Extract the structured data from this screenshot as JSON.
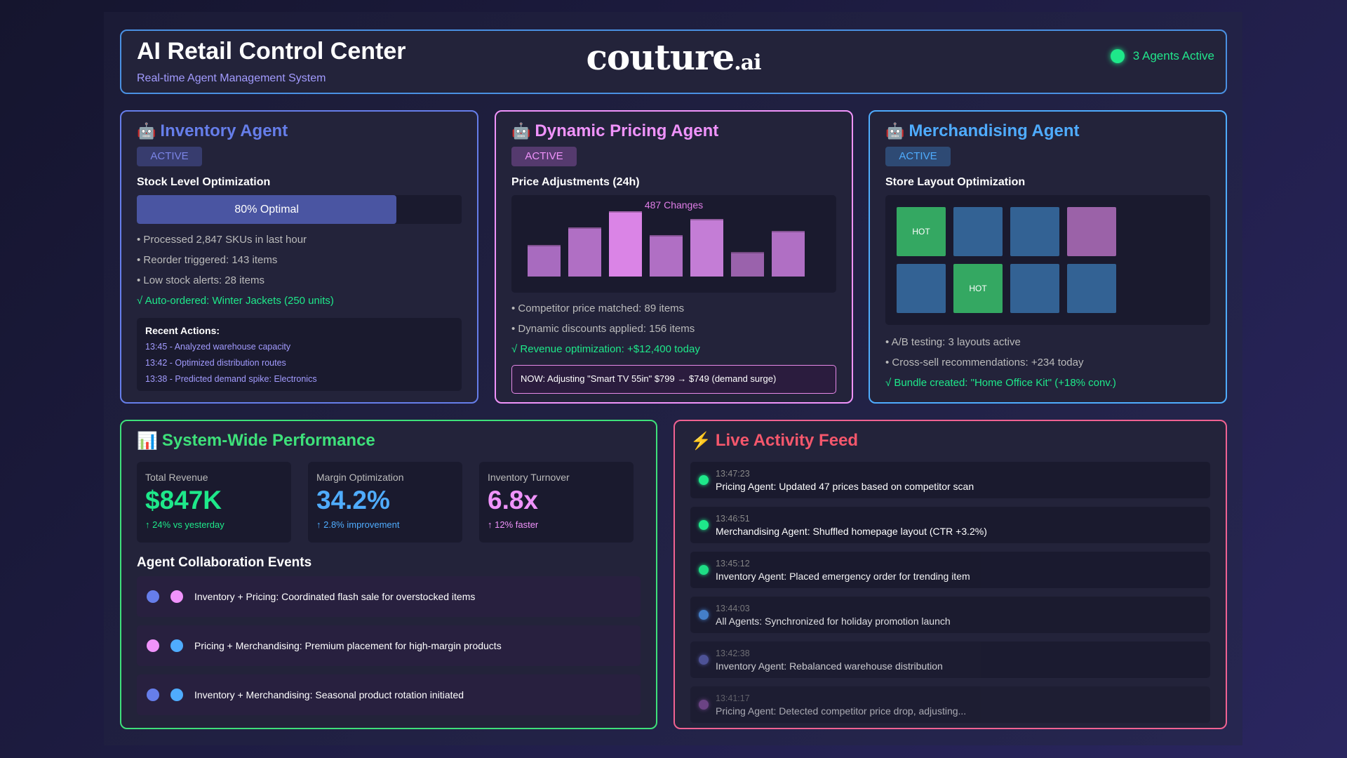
{
  "header": {
    "title": "AI Retail Control Center",
    "subtitle": "Real-time Agent Management System",
    "logo": "couture",
    "logo_suffix": ".ai",
    "status": "3 Agents Active"
  },
  "colors": {
    "inventory": "#667eea",
    "pricing": "#f093fb",
    "merch": "#4facfe",
    "success": "#1ee88a",
    "feed": "#f5576c",
    "perf": "#3ee07a"
  },
  "inventory": {
    "icon": "robot-icon",
    "title": "Inventory Agent",
    "badge": "ACTIVE",
    "section": "Stock Level Optimization",
    "progress": 80,
    "progress_label": "80% Optimal",
    "bullets": [
      "• Processed 2,847 SKUs in last hour",
      "• Reorder triggered: 143 items",
      "• Low stock alerts: 28 items"
    ],
    "success": "√ Auto-ordered: Winter Jackets (250 units)",
    "recent_title": "Recent Actions:",
    "recent": [
      "13:45 - Analyzed warehouse capacity",
      "13:42 - Optimized distribution routes",
      "13:38 - Predicted demand spike: Electronics"
    ]
  },
  "pricing": {
    "icon": "robot-icon",
    "title": "Dynamic Pricing Agent",
    "badge": "ACTIVE",
    "section": "Price Adjustments (24h)",
    "chart_label": "487 Changes",
    "bars": [
      37,
      57,
      76,
      48,
      67,
      29,
      53
    ],
    "bar_colors": [
      "#a86bbf",
      "#b06fc4",
      "#da84e6",
      "#b06fc4",
      "#c47dd6",
      "#9a62ac",
      "#b06fc4"
    ],
    "bullets": [
      "• Competitor price matched: 89 items",
      "• Dynamic discounts applied: 156 items"
    ],
    "success": "√ Revenue optimization: +$12,400 today",
    "now": "NOW: Adjusting \"Smart TV 55in\" $799 → $749 (demand surge)"
  },
  "merch": {
    "icon": "robot-icon",
    "title": "Merchandising Agent",
    "badge": "ACTIVE",
    "section": "Store Layout Optimization",
    "tiles": [
      {
        "label": "HOT",
        "color": "#34a862"
      },
      {
        "label": "",
        "color": "#336294"
      },
      {
        "label": "",
        "color": "#336294"
      },
      {
        "label": "",
        "color": "#9b62a8"
      },
      {
        "label": "",
        "color": "#336294"
      },
      {
        "label": "HOT",
        "color": "#34a862"
      },
      {
        "label": "",
        "color": "#336294"
      },
      {
        "label": "",
        "color": "#336294"
      }
    ],
    "bullets": [
      "• A/B testing: 3 layouts active",
      "• Cross-sell recommendations: +234 today"
    ],
    "success": "√ Bundle created: \"Home Office Kit\" (+18% conv.)"
  },
  "performance": {
    "icon": "bar-chart-icon",
    "title": "System-Wide Performance",
    "metrics": [
      {
        "label": "Total Revenue",
        "value": "$847K",
        "sub": "↑ 24% vs yesterday",
        "color": "#1ee88a"
      },
      {
        "label": "Margin Optimization",
        "value": "34.2%",
        "sub": "↑ 2.8% improvement",
        "color": "#4facfe"
      },
      {
        "label": "Inventory Turnover",
        "value": "6.8x",
        "sub": "↑ 12% faster",
        "color": "#f093fb"
      }
    ],
    "collab_title": "Agent Collaboration Events",
    "collab": [
      {
        "text": "Inventory + Pricing: Coordinated flash sale for overstocked items",
        "dots": [
          "#667eea",
          "#f093fb"
        ]
      },
      {
        "text": "Pricing + Merchandising: Premium placement for high-margin products",
        "dots": [
          "#f093fb",
          "#4facfe"
        ]
      },
      {
        "text": "Inventory + Merchandising: Seasonal product rotation initiated",
        "dots": [
          "#667eea",
          "#4facfe"
        ]
      }
    ]
  },
  "feed": {
    "icon": "lightning-icon",
    "title": "Live Activity Feed",
    "items": [
      {
        "time": "13:47:23",
        "text": "Pricing Agent: Updated 47 prices based on competitor scan",
        "color": "#1ee88a",
        "opacity": 1
      },
      {
        "time": "13:46:51",
        "text": "Merchandising Agent: Shuffled homepage layout (CTR +3.2%)",
        "color": "#1ee88a",
        "opacity": 1
      },
      {
        "time": "13:45:12",
        "text": "Inventory Agent: Placed emergency order for trending item",
        "color": "#1ee88a",
        "opacity": 0.95
      },
      {
        "time": "13:44:03",
        "text": "All Agents: Synchronized for holiday promotion launch",
        "color": "#4a90e2",
        "opacity": 0.85
      },
      {
        "time": "13:42:38",
        "text": "Inventory Agent: Rebalanced warehouse distribution",
        "color": "#5c62b5",
        "opacity": 0.75
      },
      {
        "time": "13:41:17",
        "text": "Pricing Agent: Detected competitor price drop, adjusting...",
        "color": "#9b59b6",
        "opacity": 0.6
      }
    ]
  }
}
